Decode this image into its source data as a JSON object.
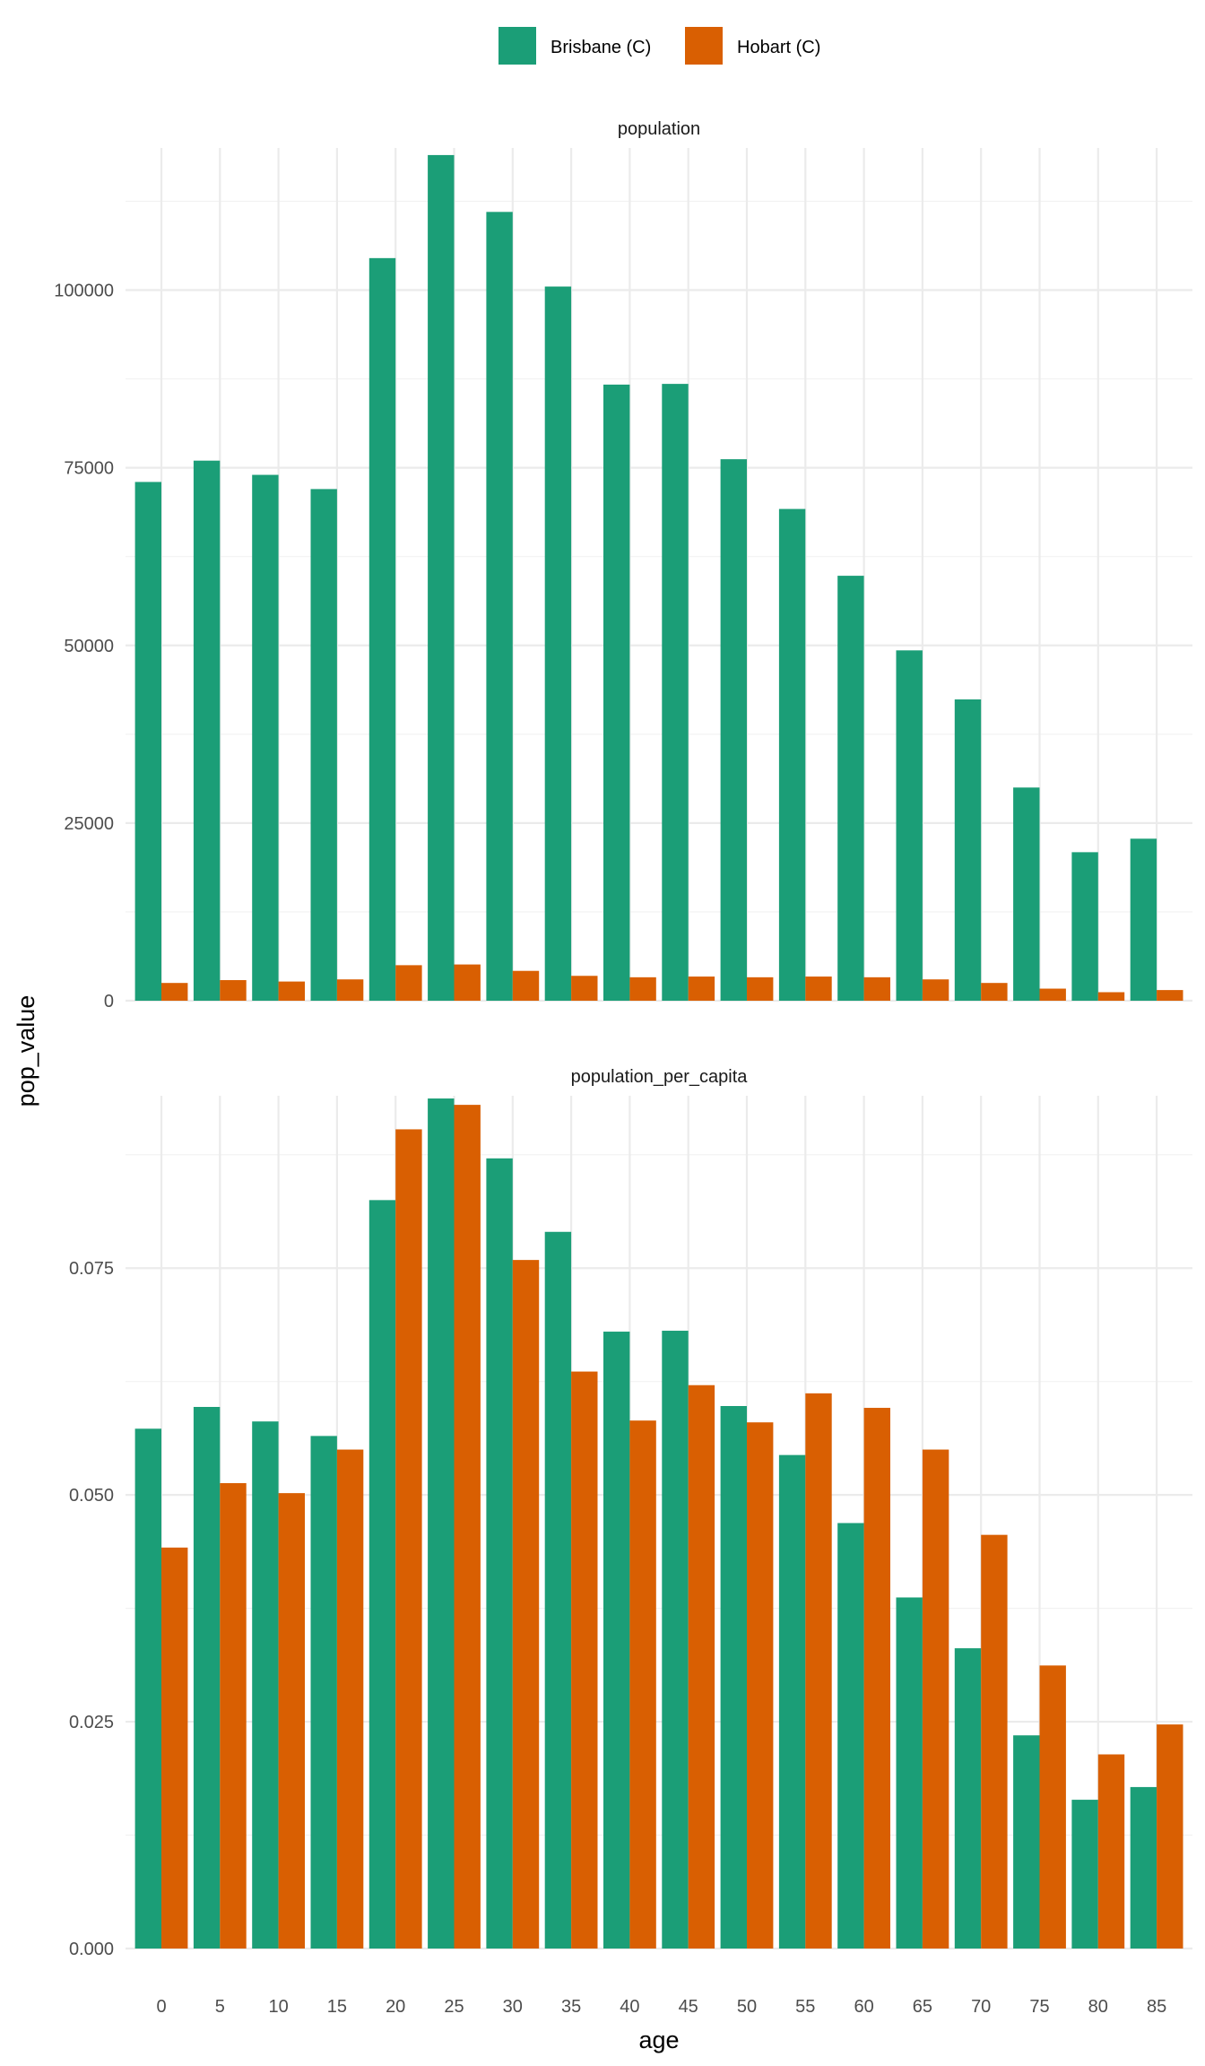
{
  "chart_data": {
    "type": "bar",
    "layout": "faceted-vertical",
    "x_title": "age",
    "y_title": "pop_value",
    "categories": [
      "0",
      "5",
      "10",
      "15",
      "20",
      "25",
      "30",
      "35",
      "40",
      "45",
      "50",
      "55",
      "60",
      "65",
      "70",
      "75",
      "80",
      "85"
    ],
    "legend": {
      "position": "top",
      "items": [
        {
          "name": "Brisbane (C)",
          "color": "#1b9e77"
        },
        {
          "name": "Hobart (C)",
          "color": "#d95f02"
        }
      ]
    },
    "facets": [
      {
        "title": "population",
        "ylim": [
          0,
          120000
        ],
        "y_ticks": [
          0,
          25000,
          50000,
          75000,
          100000
        ],
        "y_tick_labels": [
          "0",
          "25000",
          "50000",
          "75000",
          "100000"
        ],
        "series": [
          {
            "name": "Brisbane (C)",
            "values": [
              73000,
              76000,
              74000,
              72000,
              104500,
              119000,
              111000,
              100500,
              86700,
              86800,
              76200,
              69200,
              59800,
              49300,
              42400,
              30000,
              20900,
              22800
            ]
          },
          {
            "name": "Hobart (C)",
            "values": [
              2500,
              2900,
              2700,
              3000,
              5000,
              5100,
              4200,
              3500,
              3300,
              3400,
              3300,
              3400,
              3300,
              3000,
              2500,
              1700,
              1200,
              1500
            ]
          }
        ]
      },
      {
        "title": "population_per_capita",
        "ylim": [
          0,
          0.094
        ],
        "y_ticks": [
          0,
          0.025,
          0.05,
          0.075
        ],
        "y_tick_labels": [
          "0.000",
          "0.025",
          "0.050",
          "0.075"
        ],
        "series": [
          {
            "name": "Brisbane (C)",
            "values": [
              0.0573,
              0.0597,
              0.0581,
              0.0565,
              0.0825,
              0.0937,
              0.0871,
              0.079,
              0.068,
              0.0681,
              0.0598,
              0.0544,
              0.0469,
              0.0387,
              0.0331,
              0.0235,
              0.0164,
              0.0178
            ]
          },
          {
            "name": "Hobart (C)",
            "values": [
              0.0442,
              0.0513,
              0.0502,
              0.055,
              0.0903,
              0.093,
              0.0759,
              0.0636,
              0.0582,
              0.0621,
              0.058,
              0.0612,
              0.0596,
              0.055,
              0.0456,
              0.0312,
              0.0214,
              0.0247
            ]
          }
        ]
      }
    ]
  }
}
